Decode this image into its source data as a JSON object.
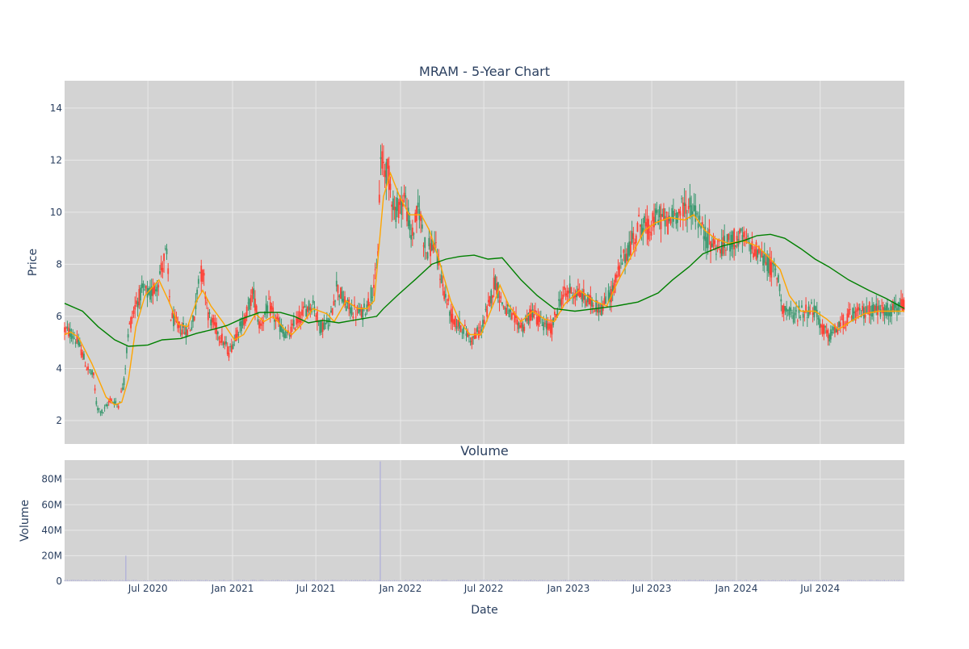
{
  "chart_data": [
    {
      "type": "candlestick",
      "title": "MRAM - 5-Year Chart",
      "xlabel": "",
      "ylabel": "Price",
      "ylim": [
        1.1,
        15.05
      ],
      "yticks": [
        2,
        4,
        6,
        8,
        10,
        12,
        14
      ],
      "xlim": [
        "2020-01-02",
        "2024-12-31"
      ],
      "grid": true,
      "price_path": [
        [
          "2020-01-02",
          5.5
        ],
        [
          "2020-01-20",
          5.3
        ],
        [
          "2020-02-05",
          4.8
        ],
        [
          "2020-02-20",
          4.0
        ],
        [
          "2020-03-05",
          3.7
        ],
        [
          "2020-03-12",
          2.5
        ],
        [
          "2020-03-25",
          2.3
        ],
        [
          "2020-04-10",
          2.8
        ],
        [
          "2020-04-28",
          2.6
        ],
        [
          "2020-05-10",
          3.5
        ],
        [
          "2020-05-20",
          5.5
        ],
        [
          "2020-06-05",
          6.5
        ],
        [
          "2020-06-20",
          7.0
        ],
        [
          "2020-07-05",
          6.8
        ],
        [
          "2020-07-20",
          7.2
        ],
        [
          "2020-08-10",
          8.5
        ],
        [
          "2020-08-20",
          6.0
        ],
        [
          "2020-09-05",
          5.6
        ],
        [
          "2020-09-25",
          5.4
        ],
        [
          "2020-10-10",
          5.9
        ],
        [
          "2020-10-20",
          7.8
        ],
        [
          "2020-10-30",
          7.5
        ],
        [
          "2020-11-10",
          6.0
        ],
        [
          "2020-12-01",
          5.4
        ],
        [
          "2020-12-25",
          4.6
        ],
        [
          "2021-01-10",
          5.4
        ],
        [
          "2021-01-25",
          5.8
        ],
        [
          "2021-02-15",
          6.9
        ],
        [
          "2021-03-01",
          5.6
        ],
        [
          "2021-03-20",
          6.4
        ],
        [
          "2021-04-10",
          5.7
        ],
        [
          "2021-05-01",
          5.2
        ],
        [
          "2021-05-20",
          5.8
        ],
        [
          "2021-06-10",
          6.3
        ],
        [
          "2021-06-25",
          6.5
        ],
        [
          "2021-07-10",
          5.6
        ],
        [
          "2021-08-01",
          5.8
        ],
        [
          "2021-08-15",
          7.2
        ],
        [
          "2021-09-01",
          6.5
        ],
        [
          "2021-09-20",
          6.2
        ],
        [
          "2021-10-10",
          6.1
        ],
        [
          "2021-10-25",
          6.6
        ],
        [
          "2021-11-12",
          7.8
        ],
        [
          "2021-11-18",
          12.0
        ],
        [
          "2021-12-05",
          11.5
        ],
        [
          "2021-12-20",
          10.0
        ],
        [
          "2022-01-10",
          10.6
        ],
        [
          "2022-01-25",
          9.0
        ],
        [
          "2022-02-10",
          10.2
        ],
        [
          "2022-02-25",
          8.5
        ],
        [
          "2022-03-15",
          8.8
        ],
        [
          "2022-04-05",
          7.0
        ],
        [
          "2022-04-25",
          5.8
        ],
        [
          "2022-05-15",
          5.6
        ],
        [
          "2022-06-05",
          5.1
        ],
        [
          "2022-06-25",
          5.5
        ],
        [
          "2022-07-10",
          6.3
        ],
        [
          "2022-07-25",
          7.4
        ],
        [
          "2022-08-10",
          6.5
        ],
        [
          "2022-09-01",
          5.9
        ],
        [
          "2022-09-25",
          5.6
        ],
        [
          "2022-10-15",
          6.2
        ],
        [
          "2022-11-05",
          5.7
        ],
        [
          "2022-11-25",
          5.5
        ],
        [
          "2022-12-15",
          6.7
        ],
        [
          "2023-01-05",
          7.0
        ],
        [
          "2023-01-30",
          6.8
        ],
        [
          "2023-02-20",
          6.5
        ],
        [
          "2023-03-15",
          6.3
        ],
        [
          "2023-04-05",
          6.9
        ],
        [
          "2023-04-25",
          8.0
        ],
        [
          "2023-05-15",
          8.7
        ],
        [
          "2023-06-05",
          9.6
        ],
        [
          "2023-06-25",
          9.3
        ],
        [
          "2023-07-15",
          9.9
        ],
        [
          "2023-08-05",
          9.6
        ],
        [
          "2023-08-25",
          10.0
        ],
        [
          "2023-09-15",
          10.2
        ],
        [
          "2023-10-05",
          10.0
        ],
        [
          "2023-10-20",
          9.2
        ],
        [
          "2023-11-10",
          8.8
        ],
        [
          "2023-12-01",
          8.6
        ],
        [
          "2023-12-20",
          8.9
        ],
        [
          "2024-01-10",
          9.0
        ],
        [
          "2024-02-01",
          8.7
        ],
        [
          "2024-02-20",
          8.4
        ],
        [
          "2024-03-10",
          8.0
        ],
        [
          "2024-03-30",
          7.6
        ],
        [
          "2024-04-10",
          6.4
        ],
        [
          "2024-05-01",
          6.0
        ],
        [
          "2024-05-25",
          6.2
        ],
        [
          "2024-06-15",
          6.3
        ],
        [
          "2024-07-05",
          5.6
        ],
        [
          "2024-07-20",
          5.2
        ],
        [
          "2024-08-10",
          5.6
        ],
        [
          "2024-09-01",
          6.0
        ],
        [
          "2024-09-25",
          6.1
        ],
        [
          "2024-10-20",
          6.3
        ],
        [
          "2024-11-20",
          6.2
        ],
        [
          "2024-12-31",
          6.4
        ]
      ],
      "volatility": 0.07,
      "series": [
        {
          "label": "",
          "color": "#ffa500",
          "values": [
            [
              "2020-01-02",
              5.3
            ],
            [
              "2020-01-15",
              5.4
            ],
            [
              "2020-02-01",
              5.2
            ],
            [
              "2020-03-01",
              4.2
            ],
            [
              "2020-04-01",
              2.9
            ],
            [
              "2020-04-20",
              2.6
            ],
            [
              "2020-05-05",
              2.7
            ],
            [
              "2020-05-20",
              3.6
            ],
            [
              "2020-06-05",
              5.6
            ],
            [
              "2020-06-25",
              6.8
            ],
            [
              "2020-07-25",
              7.4
            ],
            [
              "2020-08-15",
              6.6
            ],
            [
              "2020-09-05",
              5.7
            ],
            [
              "2020-09-25",
              5.6
            ],
            [
              "2020-10-15",
              6.6
            ],
            [
              "2020-10-28",
              7.0
            ],
            [
              "2020-11-15",
              6.4
            ],
            [
              "2020-12-10",
              5.8
            ],
            [
              "2021-01-05",
              5.1
            ],
            [
              "2021-01-25",
              5.3
            ],
            [
              "2021-02-20",
              6.1
            ],
            [
              "2021-03-10",
              5.8
            ],
            [
              "2021-03-30",
              6.0
            ],
            [
              "2021-04-25",
              5.5
            ],
            [
              "2021-05-10",
              5.3
            ],
            [
              "2021-06-01",
              5.7
            ],
            [
              "2021-06-25",
              6.3
            ],
            [
              "2021-07-25",
              6.1
            ],
            [
              "2021-08-10",
              5.8
            ],
            [
              "2021-09-05",
              6.6
            ],
            [
              "2021-09-30",
              6.3
            ],
            [
              "2021-10-20",
              6.3
            ],
            [
              "2021-11-05",
              6.6
            ],
            [
              "2021-11-25",
              10.6
            ],
            [
              "2021-12-10",
              11.5
            ],
            [
              "2021-12-30",
              10.6
            ],
            [
              "2022-01-20",
              9.9
            ],
            [
              "2022-02-15",
              9.9
            ],
            [
              "2022-03-05",
              9.3
            ],
            [
              "2022-03-25",
              8.2
            ],
            [
              "2022-04-20",
              6.6
            ],
            [
              "2022-05-10",
              5.8
            ],
            [
              "2022-06-01",
              5.3
            ],
            [
              "2022-06-25",
              5.3
            ],
            [
              "2022-07-25",
              6.6
            ],
            [
              "2022-08-05",
              7.2
            ],
            [
              "2022-08-25",
              6.4
            ],
            [
              "2022-09-20",
              5.8
            ],
            [
              "2022-10-15",
              6.2
            ],
            [
              "2022-11-10",
              5.9
            ],
            [
              "2022-12-01",
              5.8
            ],
            [
              "2022-12-25",
              6.5
            ],
            [
              "2023-01-25",
              7.0
            ],
            [
              "2023-02-25",
              6.6
            ],
            [
              "2023-03-25",
              6.4
            ],
            [
              "2023-04-20",
              7.4
            ],
            [
              "2023-05-20",
              8.4
            ],
            [
              "2023-06-15",
              9.3
            ],
            [
              "2023-07-10",
              9.6
            ],
            [
              "2023-08-10",
              9.8
            ],
            [
              "2023-09-10",
              9.7
            ],
            [
              "2023-09-30",
              9.9
            ],
            [
              "2023-10-25",
              9.3
            ],
            [
              "2023-11-15",
              9.0
            ],
            [
              "2023-12-15",
              8.8
            ],
            [
              "2024-01-15",
              8.9
            ],
            [
              "2024-02-15",
              8.7
            ],
            [
              "2024-03-10",
              8.3
            ],
            [
              "2024-04-05",
              7.8
            ],
            [
              "2024-04-25",
              6.8
            ],
            [
              "2024-05-20",
              6.2
            ],
            [
              "2024-06-20",
              6.2
            ],
            [
              "2024-07-15",
              5.9
            ],
            [
              "2024-08-10",
              5.5
            ],
            [
              "2024-09-05",
              5.8
            ],
            [
              "2024-10-05",
              6.1
            ],
            [
              "2024-11-05",
              6.2
            ],
            [
              "2024-12-31",
              6.2
            ]
          ]
        },
        {
          "label": "",
          "color": "#008000",
          "values": [
            [
              "2020-01-02",
              6.5
            ],
            [
              "2020-02-10",
              6.2
            ],
            [
              "2020-03-15",
              5.6
            ],
            [
              "2020-04-20",
              5.1
            ],
            [
              "2020-05-20",
              4.85
            ],
            [
              "2020-07-01",
              4.9
            ],
            [
              "2020-08-01",
              5.1
            ],
            [
              "2020-09-10",
              5.15
            ],
            [
              "2020-10-15",
              5.35
            ],
            [
              "2020-11-20",
              5.5
            ],
            [
              "2020-12-20",
              5.65
            ],
            [
              "2021-01-20",
              5.9
            ],
            [
              "2021-03-01",
              6.15
            ],
            [
              "2021-04-15",
              6.15
            ],
            [
              "2021-05-15",
              6.0
            ],
            [
              "2021-06-15",
              5.75
            ],
            [
              "2021-07-15",
              5.85
            ],
            [
              "2021-08-20",
              5.75
            ],
            [
              "2021-09-20",
              5.85
            ],
            [
              "2021-11-10",
              6.0
            ],
            [
              "2021-11-25",
              6.3
            ],
            [
              "2021-12-25",
              6.8
            ],
            [
              "2022-02-01",
              7.4
            ],
            [
              "2022-03-10",
              8.0
            ],
            [
              "2022-04-10",
              8.2
            ],
            [
              "2022-05-10",
              8.3
            ],
            [
              "2022-06-10",
              8.35
            ],
            [
              "2022-07-10",
              8.2
            ],
            [
              "2022-08-10",
              8.25
            ],
            [
              "2022-09-20",
              7.4
            ],
            [
              "2022-10-25",
              6.8
            ],
            [
              "2022-12-01",
              6.3
            ],
            [
              "2023-01-15",
              6.2
            ],
            [
              "2023-03-01",
              6.3
            ],
            [
              "2023-04-15",
              6.4
            ],
            [
              "2023-06-01",
              6.55
            ],
            [
              "2023-07-15",
              6.9
            ],
            [
              "2023-08-15",
              7.4
            ],
            [
              "2023-09-20",
              7.9
            ],
            [
              "2023-10-20",
              8.4
            ],
            [
              "2023-12-01",
              8.7
            ],
            [
              "2024-01-15",
              8.9
            ],
            [
              "2024-02-15",
              9.1
            ],
            [
              "2024-03-15",
              9.15
            ],
            [
              "2024-04-15",
              9.0
            ],
            [
              "2024-05-20",
              8.6
            ],
            [
              "2024-06-20",
              8.2
            ],
            [
              "2024-07-20",
              7.9
            ],
            [
              "2024-09-01",
              7.4
            ],
            [
              "2024-10-15",
              7.0
            ],
            [
              "2024-11-20",
              6.7
            ],
            [
              "2024-12-31",
              6.3
            ]
          ]
        }
      ]
    },
    {
      "type": "bar",
      "title": "Volume",
      "xlabel": "Date",
      "ylabel": "Volume",
      "ylim": [
        0,
        95000000
      ],
      "yticks": [
        0,
        20000000,
        40000000,
        60000000,
        80000000
      ],
      "ytick_labels": [
        "0",
        "20M",
        "40M",
        "60M",
        "80M"
      ],
      "xticks": [
        "2020-07-01",
        "2021-01-01",
        "2021-07-01",
        "2022-01-01",
        "2022-07-01",
        "2023-01-01",
        "2023-07-01",
        "2024-01-01",
        "2024-07-01"
      ],
      "xtick_labels": [
        "Jul 2020",
        "Jan 2021",
        "Jul 2021",
        "Jan 2022",
        "Jul 2022",
        "Jan 2023",
        "Jul 2023",
        "Jan 2024",
        "Jul 2024"
      ],
      "baseline_volume": 800000,
      "spikes": [
        [
          "2020-05-14",
          20000000
        ],
        [
          "2021-11-18",
          94000000
        ]
      ],
      "grid": true
    }
  ],
  "colors": {
    "paper": "#ffffff",
    "plot_bg": "#d3d3d3",
    "grid": "#e8e8e8",
    "text": "#2a3f5f",
    "increasing": "#3d9970",
    "decreasing": "#ff4136",
    "volume_bar": "#b3b3d9"
  }
}
